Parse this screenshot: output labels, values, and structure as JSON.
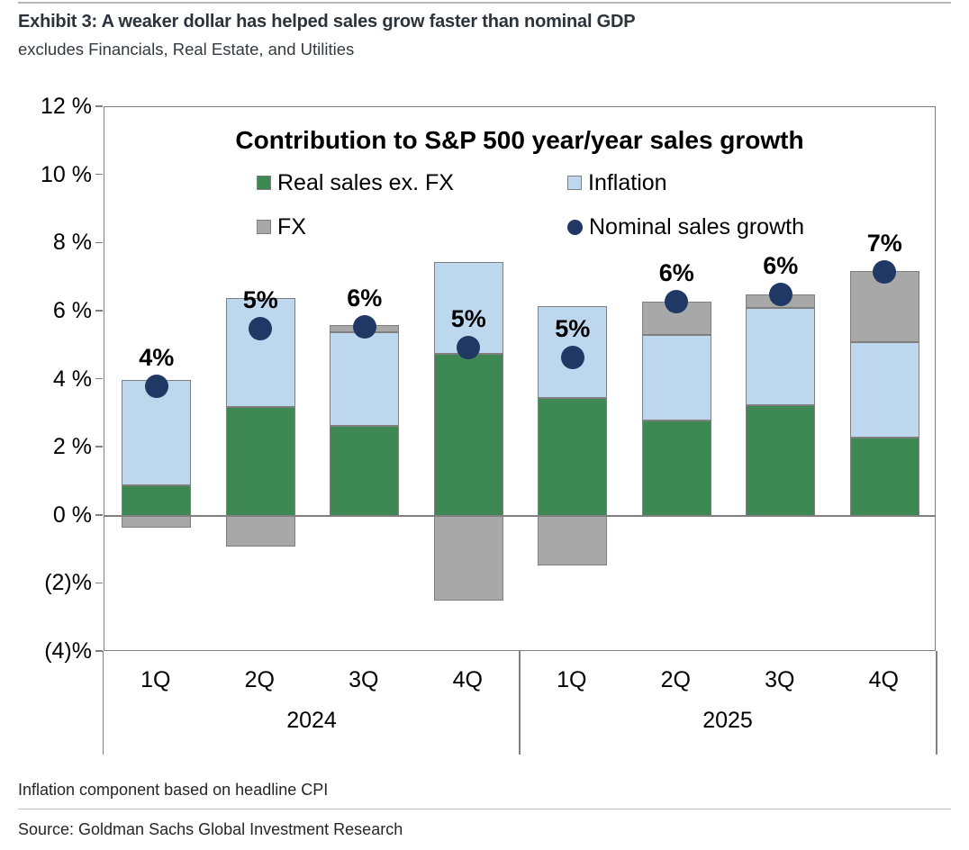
{
  "header": {
    "title": "Exhibit 3: A weaker dollar has helped sales grow faster than nominal GDP",
    "subtitle": "excludes Financials, Real Estate, and Utilities"
  },
  "footnotes": {
    "note": "Inflation component based on headline CPI",
    "source": "Source: Goldman Sachs Global Investment Research"
  },
  "chart_data": {
    "type": "bar",
    "stacked": true,
    "title": "Contribution to S&P 500 year/year sales growth",
    "categories": [
      "1Q",
      "2Q",
      "3Q",
      "4Q",
      "1Q",
      "2Q",
      "3Q",
      "4Q"
    ],
    "year_groups": [
      {
        "label": "2024",
        "span": 4
      },
      {
        "label": "2025",
        "span": 4
      }
    ],
    "series": [
      {
        "name": "Real sales ex. FX",
        "type": "bar",
        "color": "#3e8853",
        "values": [
          0.9,
          3.2,
          2.65,
          4.75,
          3.45,
          2.8,
          3.25,
          2.3
        ]
      },
      {
        "name": "Inflation",
        "type": "bar",
        "color": "#bdd7ee",
        "values": [
          3.1,
          3.2,
          2.75,
          2.7,
          2.7,
          2.5,
          2.85,
          2.8
        ]
      },
      {
        "name": "FX",
        "type": "bar",
        "color": "#a8a8a8",
        "values": [
          -0.35,
          -0.9,
          0.2,
          -2.5,
          -1.45,
          1.0,
          0.4,
          2.1
        ]
      },
      {
        "name": "Nominal sales growth",
        "type": "point",
        "color": "#1f3864",
        "values": [
          3.8,
          5.5,
          5.55,
          4.95,
          4.65,
          6.3,
          6.5,
          7.15
        ]
      }
    ],
    "point_labels": [
      "4%",
      "5%",
      "6%",
      "5%",
      "5%",
      "6%",
      "6%",
      "7%"
    ],
    "y_axis": {
      "min": -4,
      "max": 12,
      "tick_step": 2,
      "ticks": [
        {
          "value": 12,
          "label": "12 %"
        },
        {
          "value": 10,
          "label": "10 %"
        },
        {
          "value": 8,
          "label": "8 %"
        },
        {
          "value": 6,
          "label": "6 %"
        },
        {
          "value": 4,
          "label": "4 %"
        },
        {
          "value": 2,
          "label": "2 %"
        },
        {
          "value": 0,
          "label": "0 %"
        },
        {
          "value": -2,
          "label": "(2)%"
        },
        {
          "value": -4,
          "label": "(4)%"
        }
      ]
    },
    "grid": false,
    "legend_position": "top-inside",
    "bar_border_color": "#7f7f7f",
    "axis_color": "#808080"
  }
}
